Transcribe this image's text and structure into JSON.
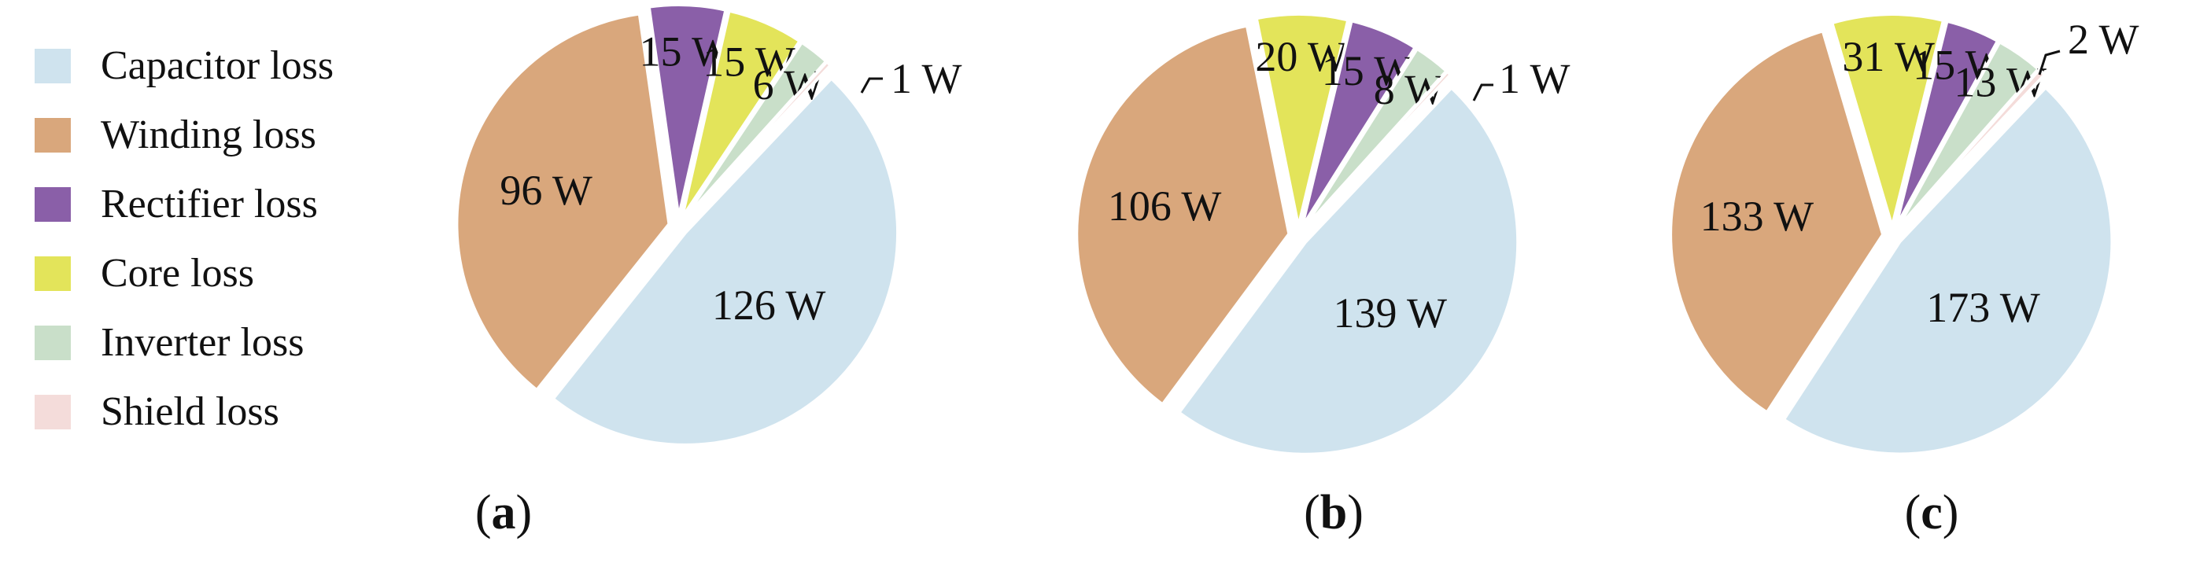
{
  "legend": [
    {
      "label": "Capacitor loss",
      "color": "#cfe3ee"
    },
    {
      "label": "Winding loss",
      "color": "#d9a77c"
    },
    {
      "label": "Rectifier loss",
      "color": "#8a5fa8"
    },
    {
      "label": "Core loss",
      "color": "#e3e45a"
    },
    {
      "label": "Inverter loss",
      "color": "#c9dfc9"
    },
    {
      "label": "Shield loss",
      "color": "#f4dcda"
    }
  ],
  "chart_data": [
    {
      "type": "pie",
      "caption_letter": "a",
      "caption": "(a)",
      "slices": [
        {
          "category": "Capacitor loss",
          "value": 126,
          "label": "126 W"
        },
        {
          "category": "Winding loss",
          "value": 96,
          "label": "96 W"
        },
        {
          "category": "Rectifier loss",
          "value": 15,
          "label": "15 W"
        },
        {
          "category": "Core loss",
          "value": 15,
          "label": "15 W"
        },
        {
          "category": "Inverter loss",
          "value": 6,
          "label": "6 W"
        },
        {
          "category": "Shield loss",
          "value": 1,
          "label": "1 W"
        }
      ]
    },
    {
      "type": "pie",
      "caption_letter": "b",
      "caption": "(b)",
      "slices": [
        {
          "category": "Capacitor loss",
          "value": 139,
          "label": "139 W"
        },
        {
          "category": "Winding loss",
          "value": 106,
          "label": "106 W"
        },
        {
          "category": "Core loss",
          "value": 20,
          "label": "20 W"
        },
        {
          "category": "Rectifier loss",
          "value": 15,
          "label": "15 W"
        },
        {
          "category": "Inverter loss",
          "value": 8,
          "label": "8 W"
        },
        {
          "category": "Shield loss",
          "value": 1,
          "label": "1 W"
        }
      ]
    },
    {
      "type": "pie",
      "caption_letter": "c",
      "caption": "(c)",
      "slices": [
        {
          "category": "Capacitor loss",
          "value": 173,
          "label": "173 W"
        },
        {
          "category": "Winding loss",
          "value": 133,
          "label": "133 W"
        },
        {
          "category": "Core loss",
          "value": 31,
          "label": "31 W"
        },
        {
          "category": "Rectifier loss",
          "value": 15,
          "label": "15 W"
        },
        {
          "category": "Inverter loss",
          "value": 13,
          "label": "13 W"
        },
        {
          "category": "Shield loss",
          "value": 2,
          "label": "2 W"
        }
      ]
    }
  ]
}
